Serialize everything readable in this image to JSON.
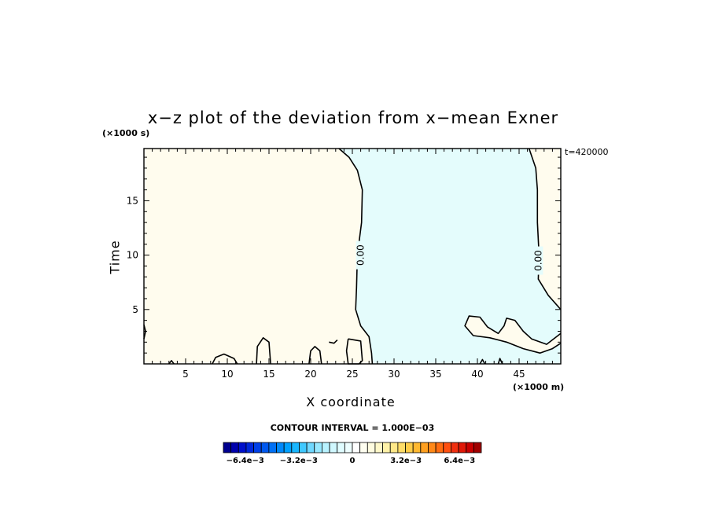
{
  "chart_data": {
    "type": "contour",
    "title": "x−z plot of the deviation from x−mean Exner",
    "xlabel": "X coordinate",
    "ylabel": "Time",
    "x_scale_label": "(×1000 m)",
    "y_scale_label": "(×1000 s)",
    "time_label": "t=420000",
    "xlim": [
      0,
      50
    ],
    "ylim": [
      0,
      19.8
    ],
    "x_ticks": [
      5,
      10,
      15,
      20,
      25,
      30,
      35,
      40,
      45
    ],
    "y_ticks": [
      5,
      10,
      15
    ],
    "contour_label": "0.00",
    "contour_interval_label": "CONTOUR INTERVAL = 1.000E−03",
    "colorbar": {
      "tick_labels": [
        "−6.4e−3",
        "−3.2e−3",
        "0",
        "3.2e−3",
        "6.4e−3"
      ],
      "tick_values": [
        -0.0064,
        -0.0032,
        0,
        0.0032,
        0.0064
      ],
      "range": [
        -0.0077,
        0.0077
      ]
    },
    "fill_colors": {
      "positive": "#fffcee",
      "negative": "#e4fcfc"
    },
    "regions": [
      {
        "sign": "negative",
        "boundary": [
          [
            23.4,
            19.8
          ],
          [
            24.6,
            19.0
          ],
          [
            25.6,
            17.8
          ],
          [
            26.2,
            16.0
          ],
          [
            26.1,
            13.0
          ],
          [
            25.6,
            10.0
          ],
          [
            25.5,
            7.0
          ],
          [
            25.4,
            5.0
          ],
          [
            26.0,
            3.5
          ],
          [
            27.0,
            2.5
          ],
          [
            27.3,
            1.0
          ],
          [
            27.4,
            0
          ],
          [
            50,
            0
          ],
          [
            50,
            1.9
          ],
          [
            49.0,
            1.4
          ],
          [
            47.5,
            1.0
          ],
          [
            45.5,
            1.4
          ],
          [
            43.5,
            2.0
          ],
          [
            41.5,
            2.4
          ],
          [
            39.5,
            2.6
          ],
          [
            38.5,
            3.5
          ],
          [
            39.0,
            4.4
          ],
          [
            40.3,
            4.3
          ],
          [
            41.2,
            3.4
          ],
          [
            42.5,
            2.8
          ],
          [
            43.2,
            3.5
          ],
          [
            43.5,
            4.2
          ],
          [
            44.5,
            4.0
          ],
          [
            45.5,
            3.0
          ],
          [
            46.5,
            2.3
          ],
          [
            48.3,
            1.8
          ],
          [
            50,
            2.8
          ],
          [
            50,
            5.0
          ],
          [
            48.5,
            6.3
          ],
          [
            47.3,
            7.8
          ],
          [
            47.4,
            10.0
          ],
          [
            47.2,
            13.0
          ],
          [
            47.2,
            16.0
          ],
          [
            47.0,
            18.0
          ],
          [
            46.2,
            19.8
          ]
        ]
      },
      {
        "sign": "positive",
        "boundary": [
          [
            24.5,
            2.3
          ],
          [
            26.0,
            2.1
          ],
          [
            26.2,
            0.3
          ],
          [
            25.8,
            0
          ],
          [
            24.5,
            0
          ],
          [
            24.3,
            1.2
          ]
        ]
      }
    ],
    "contour_lines": [
      [
        [
          23.4,
          19.8
        ],
        [
          24.6,
          19.0
        ],
        [
          25.6,
          17.8
        ],
        [
          26.2,
          16.0
        ],
        [
          26.1,
          13.0
        ],
        [
          25.6,
          10.0
        ],
        [
          25.5,
          7.0
        ],
        [
          25.4,
          5.0
        ],
        [
          26.0,
          3.5
        ],
        [
          27.0,
          2.5
        ],
        [
          27.3,
          1.0
        ],
        [
          27.4,
          0
        ]
      ],
      [
        [
          46.2,
          19.8
        ],
        [
          47.0,
          18.0
        ],
        [
          47.2,
          16.0
        ],
        [
          47.2,
          13.0
        ],
        [
          47.4,
          10.0
        ],
        [
          47.3,
          7.8
        ],
        [
          48.5,
          6.3
        ],
        [
          50,
          5.0
        ]
      ],
      [
        [
          50,
          2.8
        ],
        [
          48.3,
          1.8
        ],
        [
          46.5,
          2.3
        ],
        [
          45.5,
          3.0
        ],
        [
          44.5,
          4.0
        ],
        [
          43.5,
          4.2
        ],
        [
          43.2,
          3.5
        ],
        [
          42.5,
          2.8
        ],
        [
          41.2,
          3.4
        ],
        [
          40.3,
          4.3
        ],
        [
          39.0,
          4.4
        ],
        [
          38.5,
          3.5
        ],
        [
          39.5,
          2.6
        ],
        [
          41.5,
          2.4
        ],
        [
          43.5,
          2.0
        ],
        [
          45.5,
          1.4
        ],
        [
          47.5,
          1.0
        ],
        [
          49.0,
          1.4
        ],
        [
          50,
          1.9
        ]
      ],
      [
        [
          24.5,
          2.3
        ],
        [
          26.0,
          2.1
        ],
        [
          26.2,
          0.3
        ],
        [
          25.8,
          0
        ],
        [
          24.5,
          0
        ],
        [
          24.3,
          1.2
        ],
        [
          24.5,
          2.3
        ]
      ],
      [
        [
          8.2,
          0
        ],
        [
          8.6,
          0.6
        ],
        [
          9.6,
          0.9
        ],
        [
          10.8,
          0.5
        ],
        [
          11.2,
          0
        ]
      ],
      [
        [
          13.5,
          0
        ],
        [
          13.6,
          1.6
        ],
        [
          14.3,
          2.4
        ],
        [
          15.0,
          2.0
        ],
        [
          15.2,
          0
        ]
      ],
      [
        [
          19.8,
          0
        ],
        [
          20.0,
          1.2
        ],
        [
          20.5,
          1.6
        ],
        [
          21.1,
          1.2
        ],
        [
          21.3,
          0
        ]
      ],
      [
        [
          22.2,
          2.0
        ],
        [
          22.8,
          1.9
        ],
        [
          23.2,
          2.2
        ]
      ],
      [
        [
          40.3,
          0
        ],
        [
          40.6,
          0.4
        ],
        [
          40.9,
          0
        ]
      ],
      [
        [
          42.5,
          0
        ],
        [
          42.7,
          0.5
        ],
        [
          43.0,
          0
        ]
      ],
      [
        [
          3.0,
          0
        ],
        [
          3.3,
          0.3
        ],
        [
          3.6,
          0
        ]
      ],
      [
        [
          0,
          2.3
        ],
        [
          0.2,
          3.0
        ],
        [
          0,
          3.6
        ]
      ]
    ]
  }
}
